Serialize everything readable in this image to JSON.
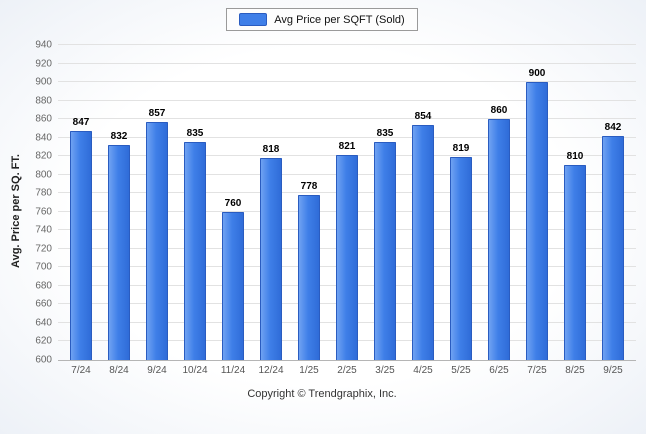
{
  "legend": {
    "label": "Avg Price per SQFT (Sold)"
  },
  "chart_data": {
    "type": "bar",
    "title": "",
    "categories": [
      "7/24",
      "8/24",
      "9/24",
      "10/24",
      "11/24",
      "12/24",
      "1/25",
      "2/25",
      "3/25",
      "4/25",
      "5/25",
      "6/25",
      "7/25",
      "8/25",
      "9/25"
    ],
    "values": [
      847,
      832,
      857,
      835,
      760,
      818,
      778,
      821,
      835,
      854,
      819,
      860,
      900,
      810,
      842
    ],
    "xlabel": "",
    "ylabel": "Avg. Price per SQ. FT.",
    "ylim": [
      600,
      940
    ],
    "ytick_step": 20,
    "grid": true,
    "legend_position": "top-center",
    "colors": {
      "bar": "#3f7fe8",
      "bar_border": "#2a5cc0"
    }
  },
  "footer": {
    "copyright": "Copyright © Trendgraphix, Inc."
  }
}
